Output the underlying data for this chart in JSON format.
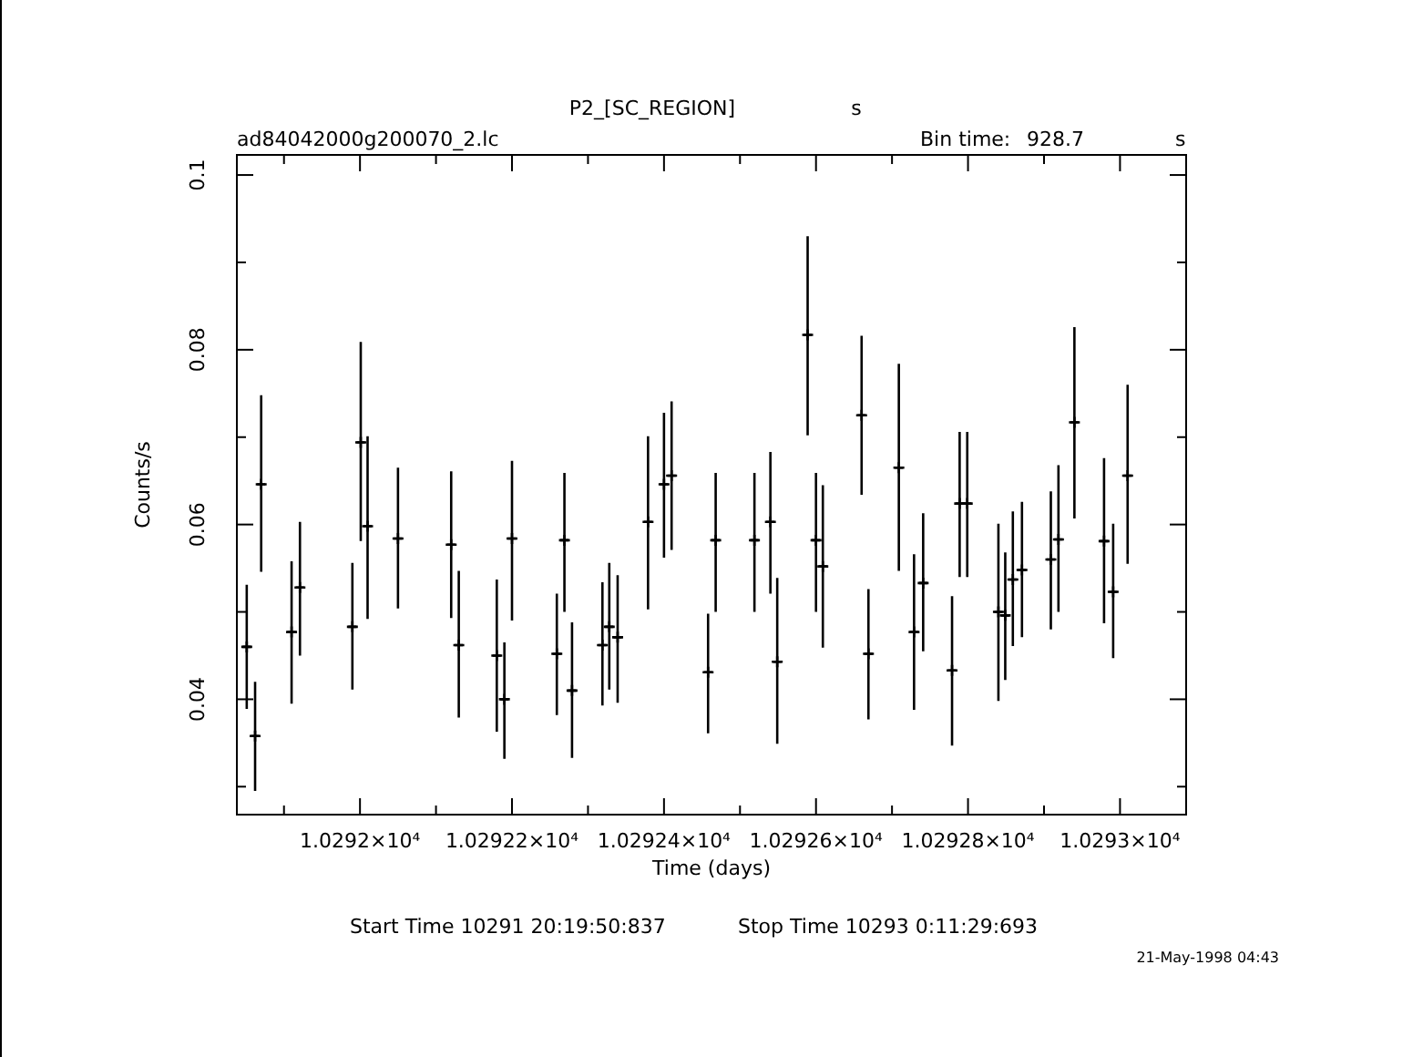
{
  "chart_data": {
    "type": "scatter",
    "title": "P2_[SC_REGION]",
    "subtitle": "ad84042000g200070_2.lc",
    "xlabel": "Time (days)",
    "ylabel": "Counts/s",
    "annotations": [
      "s",
      "Bin time:",
      "928.7",
      "s",
      "Start Time 10291 20:19:50:837",
      "Stop Time 10293  0:11:29:693",
      "21-May-1998 04:43"
    ],
    "marker": "cross",
    "grid": false,
    "xlim": [
      10291.838,
      10293.087
    ],
    "ylim": [
      0.0268,
      0.1023
    ],
    "xticks": [
      {
        "value": 10291.9,
        "label": null
      },
      {
        "value": 10292,
        "label": "1.0292×10⁴"
      },
      {
        "value": 10292.1,
        "label": null
      },
      {
        "value": 10292.2,
        "label": "1.02922×10⁴"
      },
      {
        "value": 10292.3,
        "label": null
      },
      {
        "value": 10292.4,
        "label": "1.02924×10⁴"
      },
      {
        "value": 10292.5,
        "label": null
      },
      {
        "value": 10292.6,
        "label": "1.02926×10⁴"
      },
      {
        "value": 10292.7,
        "label": null
      },
      {
        "value": 10292.8,
        "label": "1.02928×10⁴"
      },
      {
        "value": 10292.9,
        "label": null
      },
      {
        "value": 10293,
        "label": "1.0293×10⁴"
      }
    ],
    "yticks": [
      {
        "value": 0.03,
        "label": null
      },
      0.04,
      {
        "value": 0.05,
        "label": null
      },
      0.06,
      {
        "value": 0.07,
        "label": null
      },
      0.08,
      {
        "value": 0.09,
        "label": null
      },
      0.1
    ],
    "series": [
      {
        "color": "#000000",
        "x": [
          10291.851,
          10291.862,
          10291.87,
          10291.91,
          10291.921,
          10291.99,
          10292.001,
          10292.01,
          10292.05,
          10292.12,
          10292.13,
          10292.18,
          10292.19,
          10292.2,
          10292.259,
          10292.269,
          10292.279,
          10292.319,
          10292.328,
          10292.339,
          10292.379,
          10292.4,
          10292.41,
          10292.458,
          10292.468,
          10292.519,
          10292.54,
          10292.549,
          10292.589,
          10292.6,
          10292.609,
          10292.66,
          10292.669,
          10292.709,
          10292.729,
          10292.741,
          10292.779,
          10292.789,
          10292.799,
          10292.84,
          10292.849,
          10292.859,
          10292.871,
          10292.909,
          10292.919,
          10292.94,
          10292.979,
          10292.991,
          10293.01
        ],
        "values": [
          0.046,
          0.0358,
          0.0646,
          0.0477,
          0.0528,
          0.0483,
          0.0694,
          0.0598,
          0.0584,
          0.0577,
          0.0462,
          0.045,
          0.04,
          0.0584,
          0.0452,
          0.0582,
          0.041,
          0.0462,
          0.0483,
          0.0471,
          0.0603,
          0.0646,
          0.0656,
          0.0431,
          0.0582,
          0.0582,
          0.0603,
          0.0443,
          0.0817,
          0.0582,
          0.0552,
          0.0725,
          0.0452,
          0.0665,
          0.0477,
          0.0533,
          0.0433,
          0.0624,
          0.0624,
          0.05,
          0.0496,
          0.0537,
          0.0548,
          0.056,
          0.0583,
          0.0717,
          0.0581,
          0.0523,
          0.0656
        ],
        "errors": [
          [
            0.0389,
            0.0531
          ],
          [
            0.0295,
            0.042
          ],
          [
            0.0546,
            0.0748
          ],
          [
            0.0395,
            0.0558
          ],
          [
            0.045,
            0.0603
          ],
          [
            0.0411,
            0.0556
          ],
          [
            0.0581,
            0.0809
          ],
          [
            0.0492,
            0.0701
          ],
          [
            0.0504,
            0.0665
          ],
          [
            0.0493,
            0.0661
          ],
          [
            0.0379,
            0.0547
          ],
          [
            0.0363,
            0.0537
          ],
          [
            0.0332,
            0.0465
          ],
          [
            0.049,
            0.0673
          ],
          [
            0.0382,
            0.0521
          ],
          [
            0.05,
            0.0659
          ],
          [
            0.0333,
            0.0488
          ],
          [
            0.0393,
            0.0534
          ],
          [
            0.0411,
            0.0556
          ],
          [
            0.0396,
            0.0542
          ],
          [
            0.0503,
            0.0701
          ],
          [
            0.0562,
            0.0728
          ],
          [
            0.0571,
            0.0741
          ],
          [
            0.0361,
            0.0498
          ],
          [
            0.05,
            0.0659
          ],
          [
            0.05,
            0.0659
          ],
          [
            0.0521,
            0.0683
          ],
          [
            0.0349,
            0.0539
          ],
          [
            0.0702,
            0.093
          ],
          [
            0.05,
            0.0659
          ],
          [
            0.0459,
            0.0645
          ],
          [
            0.0634,
            0.0816
          ],
          [
            0.0377,
            0.0526
          ],
          [
            0.0547,
            0.0784
          ],
          [
            0.0388,
            0.0566
          ],
          [
            0.0455,
            0.0613
          ],
          [
            0.0347,
            0.0518
          ],
          [
            0.054,
            0.0706
          ],
          [
            0.054,
            0.0706
          ],
          [
            0.0398,
            0.0601
          ],
          [
            0.0422,
            0.0568
          ],
          [
            0.0461,
            0.0615
          ],
          [
            0.0471,
            0.0626
          ],
          [
            0.048,
            0.0638
          ],
          [
            0.05,
            0.0668
          ],
          [
            0.0607,
            0.0826
          ],
          [
            0.0487,
            0.0676
          ],
          [
            0.0447,
            0.0601
          ],
          [
            0.0555,
            0.076
          ]
        ],
        "xerrors": [
          0.0054,
          0.0054,
          0.0054,
          0.0054,
          0.0054,
          0.0054,
          0.0054,
          0.0054,
          0.0054,
          0.0054,
          0.0054,
          0.0054,
          0.0054,
          0.0054,
          0.0054,
          0.0054,
          0.0054,
          0.0054,
          0.0054,
          0.0054,
          0.0054,
          0.0054,
          0.0054,
          0.0054,
          0.0054,
          0.0054,
          0.0054,
          0.0054,
          0.0054,
          0.0054,
          0.0054,
          0.0054,
          0.0054,
          0.0054,
          0.0054,
          0.0054,
          0.0054,
          0.0054,
          0.0054,
          0.0054,
          0.0054,
          0.0054,
          0.0054,
          0.0054,
          0.0054,
          0.0054,
          0.0054,
          0.0054,
          0.0054
        ]
      }
    ]
  }
}
